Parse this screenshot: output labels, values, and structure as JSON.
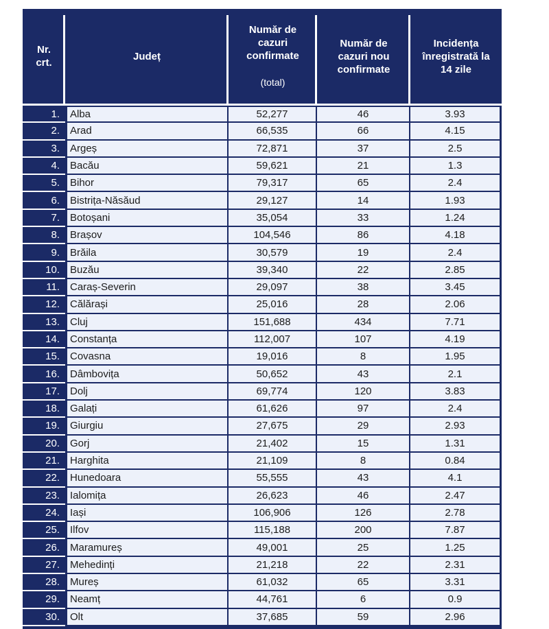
{
  "colors": {
    "navy": "#1b2a66",
    "row_bg": "#edf1fa",
    "body_text": "#1c1c1c",
    "header_text": "#ffffff"
  },
  "table": {
    "columns": [
      {
        "key": "nr",
        "label": "Nr.\ncrt."
      },
      {
        "key": "judet",
        "label": "Județ"
      },
      {
        "key": "total",
        "label": "Număr de\ncazuri\nconfirmate",
        "sublabel": "(total)"
      },
      {
        "key": "nou",
        "label": "Număr de\ncazuri nou\nconfirmate"
      },
      {
        "key": "incidenta",
        "label": "Incidența\nînregistrată la\n14 zile"
      }
    ],
    "rows": [
      {
        "nr": "1.",
        "judet": "Alba",
        "total": "52,277",
        "nou": "46",
        "incidenta": "3.93"
      },
      {
        "nr": "2.",
        "judet": "Arad",
        "total": "66,535",
        "nou": "66",
        "incidenta": "4.15"
      },
      {
        "nr": "3.",
        "judet": "Argeș",
        "total": "72,871",
        "nou": "37",
        "incidenta": "2.5"
      },
      {
        "nr": "4.",
        "judet": "Bacău",
        "total": "59,621",
        "nou": "21",
        "incidenta": "1.3"
      },
      {
        "nr": "5.",
        "judet": "Bihor",
        "total": "79,317",
        "nou": "65",
        "incidenta": "2.4"
      },
      {
        "nr": "6.",
        "judet": "Bistrița-Năsăud",
        "total": "29,127",
        "nou": "14",
        "incidenta": "1.93"
      },
      {
        "nr": "7.",
        "judet": "Botoșani",
        "total": "35,054",
        "nou": "33",
        "incidenta": "1.24"
      },
      {
        "nr": "8.",
        "judet": "Brașov",
        "total": "104,546",
        "nou": "86",
        "incidenta": "4.18"
      },
      {
        "nr": "9.",
        "judet": "Brăila",
        "total": "30,579",
        "nou": "19",
        "incidenta": "2.4"
      },
      {
        "nr": "10.",
        "judet": "Buzău",
        "total": "39,340",
        "nou": "22",
        "incidenta": "2.85"
      },
      {
        "nr": "11.",
        "judet": "Caraș-Severin",
        "total": "29,097",
        "nou": "38",
        "incidenta": "3.45"
      },
      {
        "nr": "12.",
        "judet": "Călărași",
        "total": "25,016",
        "nou": "28",
        "incidenta": "2.06"
      },
      {
        "nr": "13.",
        "judet": "Cluj",
        "total": "151,688",
        "nou": "434",
        "incidenta": "7.71"
      },
      {
        "nr": "14.",
        "judet": "Constanța",
        "total": "112,007",
        "nou": "107",
        "incidenta": "4.19"
      },
      {
        "nr": "15.",
        "judet": "Covasna",
        "total": "19,016",
        "nou": "8",
        "incidenta": "1.95"
      },
      {
        "nr": "16.",
        "judet": "Dâmbovița",
        "total": "50,652",
        "nou": "43",
        "incidenta": "2.1"
      },
      {
        "nr": "17.",
        "judet": "Dolj",
        "total": "69,774",
        "nou": "120",
        "incidenta": "3.83"
      },
      {
        "nr": "18.",
        "judet": "Galați",
        "total": "61,626",
        "nou": "97",
        "incidenta": "2.4"
      },
      {
        "nr": "19.",
        "judet": "Giurgiu",
        "total": "27,675",
        "nou": "29",
        "incidenta": "2.93"
      },
      {
        "nr": "20.",
        "judet": "Gorj",
        "total": "21,402",
        "nou": "15",
        "incidenta": "1.31"
      },
      {
        "nr": "21.",
        "judet": "Harghita",
        "total": "21,109",
        "nou": "8",
        "incidenta": "0.84"
      },
      {
        "nr": "22.",
        "judet": "Hunedoara",
        "total": "55,555",
        "nou": "43",
        "incidenta": "4.1"
      },
      {
        "nr": "23.",
        "judet": "Ialomița",
        "total": "26,623",
        "nou": "46",
        "incidenta": "2.47"
      },
      {
        "nr": "24.",
        "judet": "Iași",
        "total": "106,906",
        "nou": "126",
        "incidenta": "2.78"
      },
      {
        "nr": "25.",
        "judet": "Ilfov",
        "total": "115,188",
        "nou": "200",
        "incidenta": "7.87"
      },
      {
        "nr": "26.",
        "judet": "Maramureș",
        "total": "49,001",
        "nou": "25",
        "incidenta": "1.25"
      },
      {
        "nr": "27.",
        "judet": "Mehedinți",
        "total": "21,218",
        "nou": "22",
        "incidenta": "2.31"
      },
      {
        "nr": "28.",
        "judet": "Mureș",
        "total": "61,032",
        "nou": "65",
        "incidenta": "3.31"
      },
      {
        "nr": "29.",
        "judet": "Neamț",
        "total": "44,761",
        "nou": "6",
        "incidenta": "0.9"
      },
      {
        "nr": "30.",
        "judet": "Olt",
        "total": "37,685",
        "nou": "59",
        "incidenta": "2.96"
      }
    ]
  }
}
